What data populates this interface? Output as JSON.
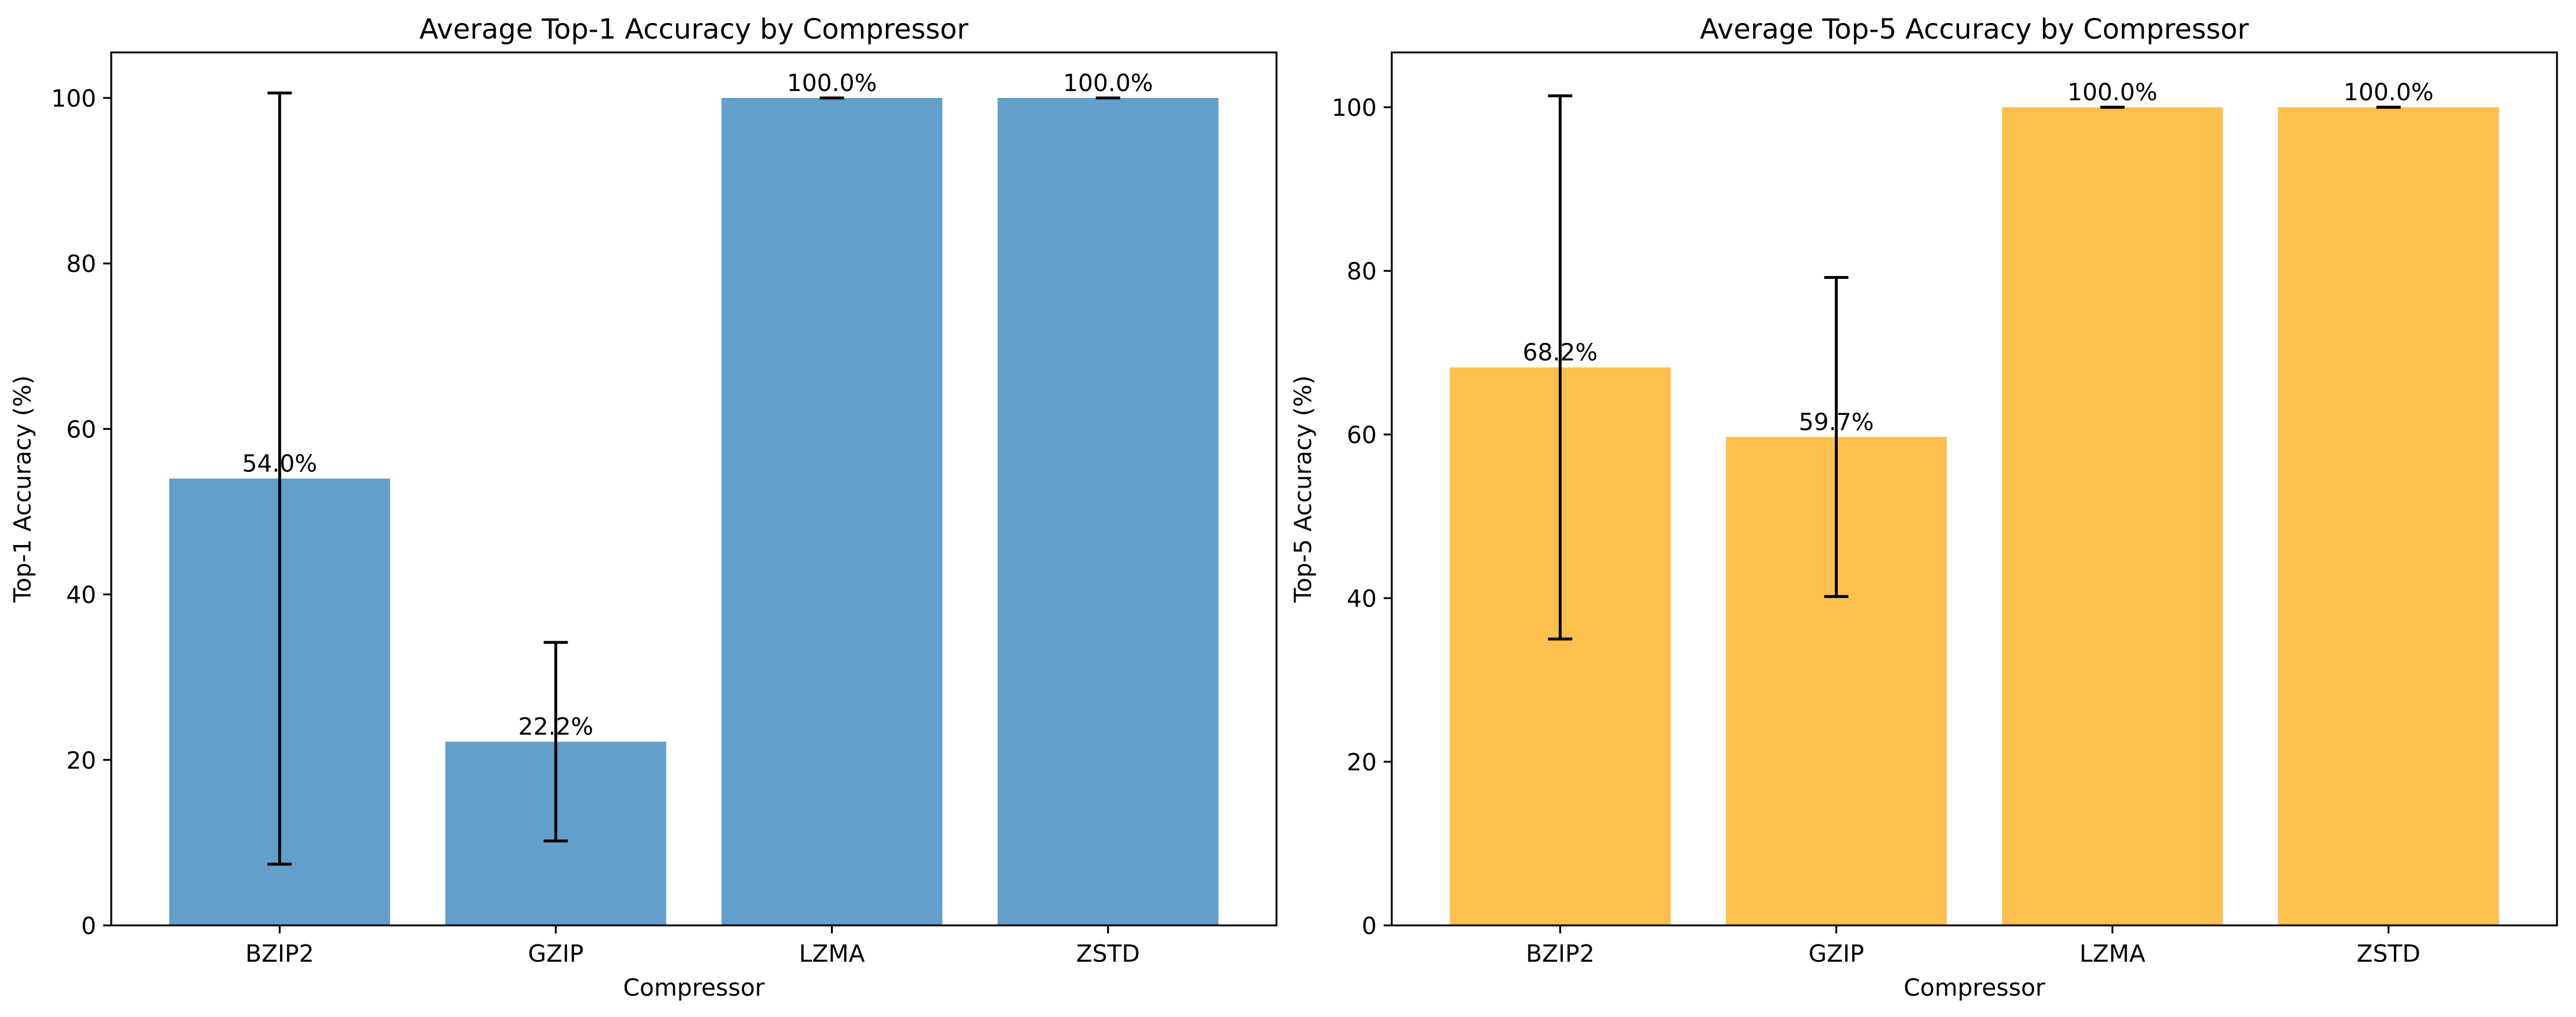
{
  "chart_data": [
    {
      "type": "bar",
      "title": "Average Top-1 Accuracy by Compressor",
      "xlabel": "Compressor",
      "ylabel": "Top-1 Accuracy (%)",
      "categories": [
        "BZIP2",
        "GZIP",
        "LZMA",
        "ZSTD"
      ],
      "values": [
        54.0,
        22.2,
        100.0,
        100.0
      ],
      "error": [
        46.6,
        12.0,
        0.0,
        0.0
      ],
      "data_labels": [
        "54.0%",
        "22.2%",
        "100.0%",
        "100.0%"
      ],
      "ylim": [
        0,
        105.5
      ],
      "yticks": [
        0,
        20,
        40,
        60,
        80,
        100
      ],
      "bar_color": "#62a0cb",
      "error_color": "#000000",
      "grid": false
    },
    {
      "type": "bar",
      "title": "Average Top-5 Accuracy by Compressor",
      "xlabel": "Compressor",
      "ylabel": "Top-5 Accuracy (%)",
      "categories": [
        "BZIP2",
        "GZIP",
        "LZMA",
        "ZSTD"
      ],
      "values": [
        68.2,
        59.7,
        100.0,
        100.0
      ],
      "error": [
        33.2,
        19.5,
        0.0,
        0.0
      ],
      "data_labels": [
        "68.2%",
        "59.7%",
        "100.0%",
        "100.0%"
      ],
      "ylim": [
        0,
        106.7
      ],
      "yticks": [
        0,
        20,
        40,
        60,
        80,
        100
      ],
      "bar_color": "#fdbf4e",
      "error_color": "#000000",
      "grid": false
    }
  ]
}
